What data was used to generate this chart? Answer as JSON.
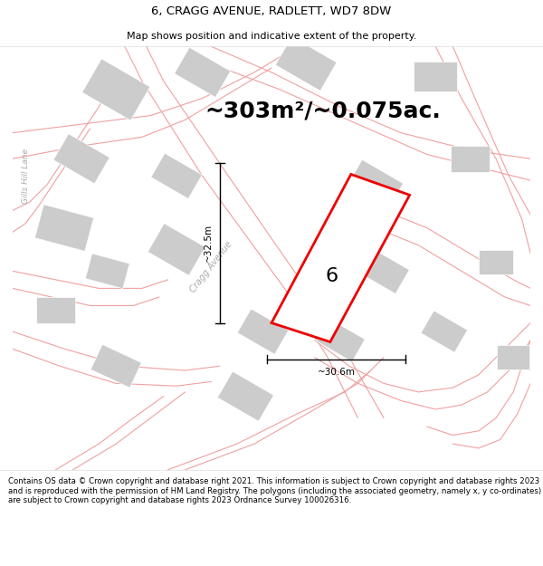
{
  "title": "6, CRAGG AVENUE, RADLETT, WD7 8DW",
  "subtitle": "Map shows position and indicative extent of the property.",
  "area_text": "~303m²/~0.075ac.",
  "label_number": "6",
  "dim_width": "~30.6m",
  "dim_height": "~32.5m",
  "footer": "Contains OS data © Crown copyright and database right 2021. This information is subject to Crown copyright and database rights 2023 and is reproduced with the permission of HM Land Registry. The polygons (including the associated geometry, namely x, y co-ordinates) are subject to Crown copyright and database rights 2023 Ordnance Survey 100026316.",
  "map_bg": "#f5f3f0",
  "road_color": "#f0a0a0",
  "building_color": "#cccccc",
  "plot_color": "#ee0000",
  "title_fontsize": 9.5,
  "subtitle_fontsize": 8,
  "area_fontsize": 18,
  "label_fontsize": 16,
  "footer_fontsize": 6.2,
  "road_lw": 0.8,
  "road_label_color": "#aaaaaa",
  "road_label2_color": "#aaaaaa"
}
